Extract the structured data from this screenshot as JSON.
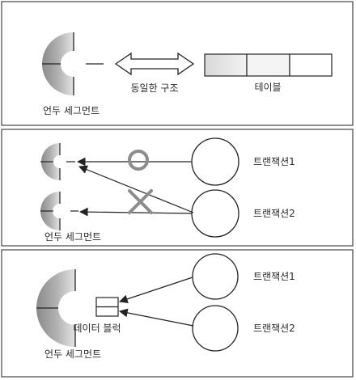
{
  "panel1": {
    "segment_label": "언두 세그먼트",
    "relation_label": "동일한 구조",
    "table_label": "테이블"
  },
  "panel2": {
    "segment_label": "언두 세그먼트",
    "transaction1_label": "트랜잭션1",
    "transaction2_label": "트랜잭션2",
    "allowed_mark": "circle",
    "denied_mark": "cross"
  },
  "panel3": {
    "segment_label": "언두 세그먼트",
    "block_label": "데이터 블럭",
    "transaction1_label": "트랜잭션1",
    "transaction2_label": "트랜잭션2"
  },
  "colors": {
    "border": "#444444",
    "stroke": "#222222",
    "segment_fill_dark": "#8a8a8a",
    "segment_fill_light": "#e2e2e2",
    "mark_color": "#8c8c8c"
  }
}
